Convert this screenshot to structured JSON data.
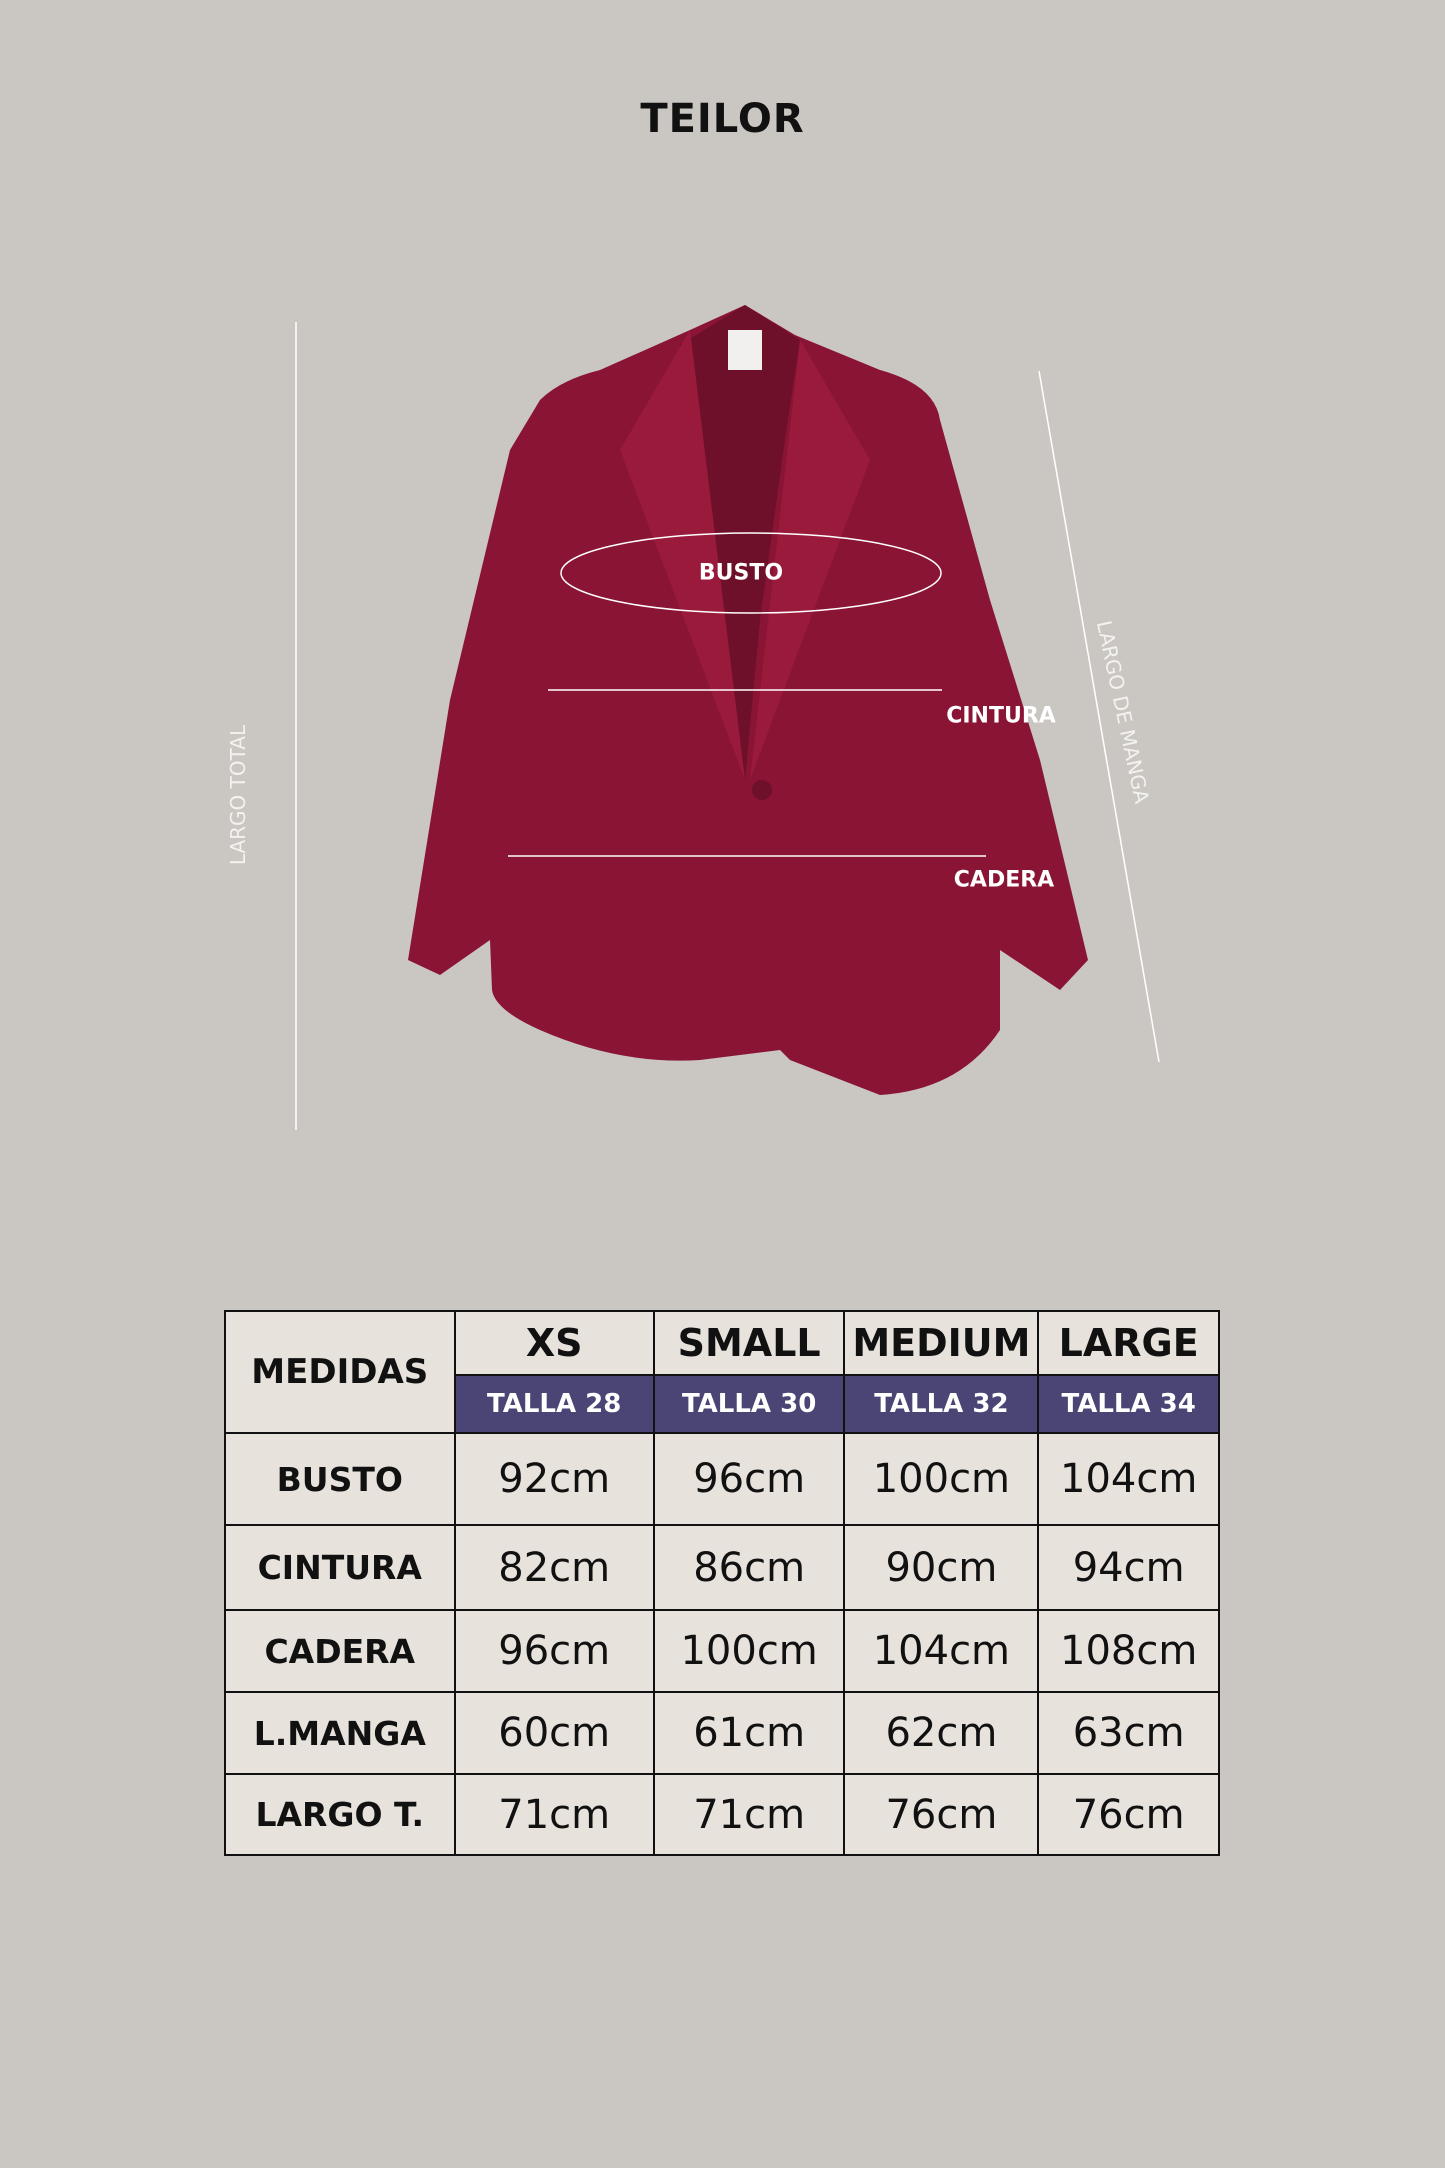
{
  "brand": "TEILOR",
  "diagram_labels": {
    "busto": "BUSTO",
    "cintura": "CINTURA",
    "cadera": "CADERA",
    "largo_total": "LARGO TOTAL",
    "largo_manga": "LARGO DE MANGA"
  },
  "colors": {
    "background": "#cac7c2",
    "jacket": "#8a1434",
    "header_band": "#4a4575",
    "cell": "#e8e2dd"
  },
  "table": {
    "corner": "MEDIDAS",
    "sizes": [
      {
        "name": "XS",
        "talla": "TALLA 28"
      },
      {
        "name": "SMALL",
        "talla": "TALLA 30"
      },
      {
        "name": "MEDIUM",
        "talla": "TALLA 32"
      },
      {
        "name": "LARGE",
        "talla": "TALLA 34"
      }
    ],
    "rows": [
      {
        "label": "BUSTO",
        "values": [
          "92cm",
          "96cm",
          "100cm",
          "104cm"
        ]
      },
      {
        "label": "CINTURA",
        "values": [
          "82cm",
          "86cm",
          "90cm",
          "94cm"
        ]
      },
      {
        "label": "CADERA",
        "values": [
          "96cm",
          "100cm",
          "104cm",
          "108cm"
        ]
      },
      {
        "label": "L.MANGA",
        "values": [
          "60cm",
          "61cm",
          "62cm",
          "63cm"
        ]
      },
      {
        "label": "LARGO T.",
        "values": [
          "71cm",
          "71cm",
          "76cm",
          "76cm"
        ]
      }
    ]
  }
}
